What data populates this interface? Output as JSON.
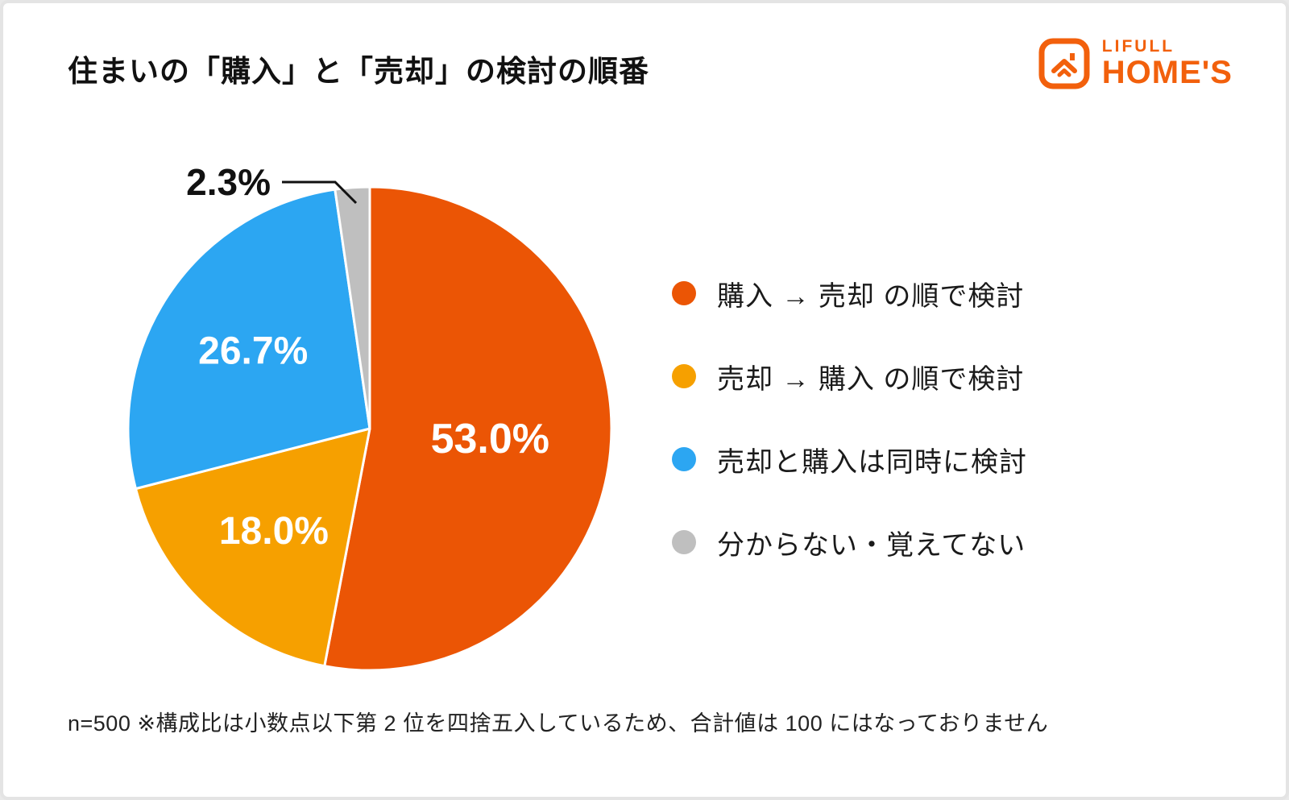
{
  "logo": {
    "brand_top": "LIFULL",
    "brand_bottom": "HOME'S",
    "brand_color": "#f2600c"
  },
  "footnote": {
    "text": "n=500  ※構成比は小数点以下第 2 位を四捨五入しているため、合計値は 100 にはなっておりません"
  },
  "chart_data": {
    "type": "pie",
    "title": "住まいの「購入」と「売却」の検討の順番",
    "values": [
      53.0,
      18.0,
      26.7,
      2.3
    ],
    "display_values": [
      "53.0%",
      "18.0%",
      "26.7%",
      "2.3%"
    ],
    "labels": [
      "購入 → 売却 の順で検討",
      "売却 → 購入 の順で検討",
      "売却と購入は同時に検討",
      "分からない・覚えてない"
    ],
    "colors": [
      "#EB5505",
      "#F6A000",
      "#2CA6F2",
      "#BFBFBF"
    ],
    "start_angle_deg": -90,
    "direction": "clockwise",
    "legend_position": "right",
    "sample_note": "n=500"
  }
}
